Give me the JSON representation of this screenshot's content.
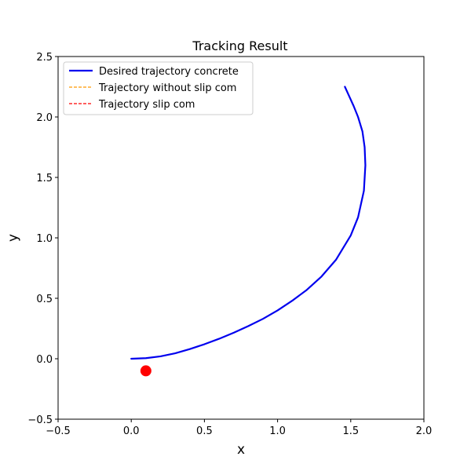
{
  "chart_data": {
    "type": "line",
    "title": "Tracking Result",
    "xlabel": "x",
    "ylabel": "y",
    "xlim": [
      -0.5,
      2.0
    ],
    "ylim": [
      -0.5,
      2.5
    ],
    "xticks": [
      -0.5,
      0.0,
      0.5,
      1.0,
      1.5,
      2.0
    ],
    "yticks": [
      -0.5,
      0.0,
      0.5,
      1.0,
      1.5,
      2.0,
      2.5
    ],
    "xtick_labels": [
      "−0.5",
      "0.0",
      "0.5",
      "1.0",
      "1.5",
      "2.0"
    ],
    "ytick_labels": [
      "−0.5",
      "0.0",
      "0.5",
      "1.0",
      "1.5",
      "2.0",
      "2.5"
    ],
    "grid": false,
    "legend_position": "upper-left",
    "series": [
      {
        "name": "Desired trajectory concrete",
        "style": "solid",
        "color": "#0000ee",
        "x": [
          0.0,
          0.1,
          0.2,
          0.3,
          0.4,
          0.5,
          0.6,
          0.7,
          0.8,
          0.9,
          1.0,
          1.1,
          1.2,
          1.3,
          1.4,
          1.5,
          1.55,
          1.59,
          1.6,
          1.595,
          1.58,
          1.55,
          1.52,
          1.49,
          1.46
        ],
        "y": [
          0.0,
          0.005,
          0.02,
          0.045,
          0.08,
          0.12,
          0.165,
          0.215,
          0.27,
          0.33,
          0.4,
          0.48,
          0.57,
          0.68,
          0.82,
          1.02,
          1.17,
          1.39,
          1.6,
          1.75,
          1.88,
          2.0,
          2.09,
          2.17,
          2.25
        ]
      },
      {
        "name": "Trajectory without slip com",
        "style": "dashed",
        "color": "#ff9900",
        "x": [],
        "y": []
      },
      {
        "name": "Trajectory slip com",
        "style": "dashed",
        "color": "#ff0000",
        "x": [],
        "y": []
      }
    ],
    "markers": [
      {
        "x": 0.1,
        "y": -0.1,
        "color": "#ff0000"
      }
    ]
  }
}
